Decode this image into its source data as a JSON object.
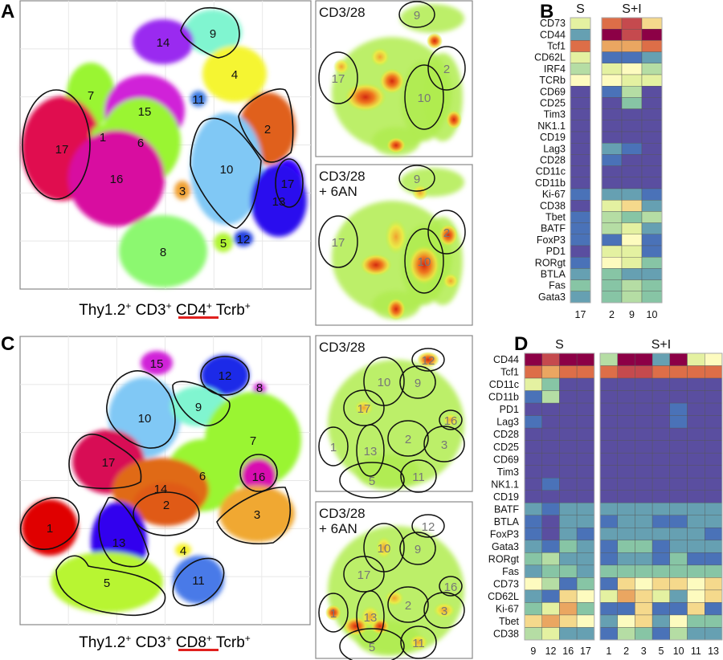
{
  "panel_letters": {
    "a": "A",
    "b": "B",
    "c": "C",
    "d": "D"
  },
  "captions": {
    "a": {
      "pre": "Thy1.2",
      "sup1": "+",
      "mid": " CD3",
      "sup2": "+",
      "hl": " CD4",
      "sup3": "+",
      "post": " Tcrb",
      "sup4": "+"
    },
    "c": {
      "pre": "Thy1.2",
      "sup1": "+",
      "mid": " CD3",
      "sup2": "+",
      "hl": " CD8",
      "sup3": "+",
      "post": " Tcrb",
      "sup4": "+"
    }
  },
  "highlight_color": "#e0201e",
  "density_titles": {
    "top": "CD3/28",
    "bottom_line1": "CD3/28",
    "bottom_line2": "+ 6AN"
  },
  "tsne_a": {
    "clusters": [
      {
        "label": "9",
        "color": "#80f5d0"
      },
      {
        "label": "14",
        "color": "#9a2af0"
      },
      {
        "label": "4",
        "color": "#f5f530"
      },
      {
        "label": "7",
        "color": "#9af530"
      },
      {
        "label": "15",
        "color": "#d020d8"
      },
      {
        "label": "11",
        "color": "#3a78e0"
      },
      {
        "label": "17",
        "color": "#e0084f"
      },
      {
        "label": "1",
        "color": "#9af530"
      },
      {
        "label": "6",
        "color": "#9af530"
      },
      {
        "label": "2",
        "color": "#e0601a"
      },
      {
        "label": "10",
        "color": "#80c8f5"
      },
      {
        "label": "16",
        "color": "#d80aa0"
      },
      {
        "label": "3",
        "color": "#f0a030"
      },
      {
        "label": "17",
        "color": "#3300ff"
      },
      {
        "label": "13",
        "color": "#2b10ee"
      },
      {
        "label": "8",
        "color": "#8cf870"
      },
      {
        "label": "5",
        "color": "#b0f530"
      },
      {
        "label": "12",
        "color": "#2040e0"
      }
    ],
    "density_gates": [
      "9",
      "17",
      "2",
      "10"
    ]
  },
  "tsne_c": {
    "clusters": [
      {
        "label": "15",
        "color": "#d020d8"
      },
      {
        "label": "12",
        "color": "#1a2ae8"
      },
      {
        "label": "8",
        "color": "#d020d8"
      },
      {
        "label": "10",
        "color": "#80c8f5"
      },
      {
        "label": "9",
        "color": "#80f5d0"
      },
      {
        "label": "7",
        "color": "#9af530"
      },
      {
        "label": "17",
        "color": "#d80a55"
      },
      {
        "label": "6",
        "color": "#9af530"
      },
      {
        "label": "16",
        "color": "#d80ab0"
      },
      {
        "label": "14",
        "color": "#e06a18"
      },
      {
        "label": "2",
        "color": "#e05a18"
      },
      {
        "label": "3",
        "color": "#f0a830"
      },
      {
        "label": "1",
        "color": "#e00000"
      },
      {
        "label": "13",
        "color": "#3300ee"
      },
      {
        "label": "4",
        "color": "#f5f020"
      },
      {
        "label": "5",
        "color": "#b8f530"
      },
      {
        "label": "11",
        "color": "#4a7ae8"
      }
    ],
    "density_gates": [
      "12",
      "10",
      "9",
      "17",
      "16",
      "1",
      "13",
      "2",
      "3",
      "5",
      "11"
    ]
  },
  "chart_data": [
    {
      "type": "heatmap",
      "panel": "B",
      "groups": [
        {
          "name": "S",
          "columns": [
            "17"
          ]
        },
        {
          "name": "S+I",
          "columns": [
            "2",
            "9",
            "10"
          ]
        }
      ],
      "rows": [
        "CD73",
        "CD44",
        "Tcf1",
        "CD62L",
        "IRF4",
        "TCRb",
        "CD69",
        "CD25",
        "Tim3",
        "NK1.1",
        "CD19",
        "Lag3",
        "CD28",
        "CD11c",
        "CD11b",
        "Ki-67",
        "CD38",
        "Tbet",
        "BATF",
        "FoxP3",
        "PD1",
        "RORgt",
        "BTLA",
        "Fas",
        "Gata3"
      ],
      "values": [
        [
          5,
          9,
          10,
          7
        ],
        [
          2,
          11,
          10,
          11
        ],
        [
          9,
          8,
          8,
          9
        ],
        [
          5,
          1,
          1,
          2
        ],
        [
          4,
          5,
          6,
          4
        ],
        [
          6,
          6,
          5,
          5
        ],
        [
          0,
          1,
          4,
          0
        ],
        [
          0,
          0,
          3,
          0
        ],
        [
          0,
          0,
          0,
          0
        ],
        [
          0,
          0,
          0,
          0
        ],
        [
          0,
          0,
          0,
          0
        ],
        [
          0,
          2,
          1,
          0
        ],
        [
          0,
          1,
          0,
          0
        ],
        [
          0,
          0,
          0,
          0
        ],
        [
          0,
          0,
          0,
          0
        ],
        [
          1,
          2,
          2,
          1
        ],
        [
          0,
          5,
          7,
          2
        ],
        [
          1,
          4,
          3,
          4
        ],
        [
          1,
          4,
          5,
          2
        ],
        [
          1,
          1,
          6,
          1
        ],
        [
          0,
          5,
          5,
          1
        ],
        [
          1,
          6,
          5,
          3
        ],
        [
          2,
          3,
          2,
          2
        ],
        [
          3,
          3,
          4,
          3
        ],
        [
          2,
          3,
          4,
          3
        ]
      ]
    },
    {
      "type": "heatmap",
      "panel": "D",
      "groups": [
        {
          "name": "S",
          "columns": [
            "9",
            "12",
            "16",
            "17"
          ]
        },
        {
          "name": "S+I",
          "columns": [
            "1",
            "2",
            "3",
            "5",
            "10",
            "11",
            "13"
          ]
        }
      ],
      "rows": [
        "CD44",
        "Tcf1",
        "CD11c",
        "CD11b",
        "PD1",
        "Lag3",
        "CD28",
        "CD25",
        "CD69",
        "Tim3",
        "NK1.1",
        "CD19",
        "BATF",
        "BTLA",
        "FoxP3",
        "Gata3",
        "RORgt",
        "Fas",
        "CD73",
        "CD62L",
        "Ki-67",
        "Tbet",
        "CD38"
      ],
      "values": [
        [
          11,
          10,
          11,
          11,
          4,
          11,
          11,
          2,
          11,
          5,
          6
        ],
        [
          9,
          8,
          9,
          9,
          9,
          10,
          10,
          9,
          9,
          9,
          9
        ],
        [
          5,
          3,
          0,
          0,
          0,
          0,
          0,
          0,
          0,
          0,
          0
        ],
        [
          1,
          4,
          0,
          0,
          0,
          0,
          0,
          0,
          0,
          0,
          0
        ],
        [
          0,
          0,
          0,
          0,
          0,
          0,
          0,
          0,
          1,
          0,
          0
        ],
        [
          1,
          0,
          0,
          0,
          0,
          0,
          0,
          0,
          1,
          0,
          0
        ],
        [
          0,
          0,
          0,
          0,
          0,
          0,
          0,
          0,
          0,
          0,
          0
        ],
        [
          0,
          0,
          0,
          0,
          0,
          0,
          0,
          0,
          0,
          0,
          0
        ],
        [
          0,
          0,
          0,
          0,
          0,
          0,
          0,
          0,
          0,
          0,
          0
        ],
        [
          0,
          0,
          0,
          0,
          0,
          0,
          0,
          0,
          0,
          0,
          0
        ],
        [
          0,
          1,
          0,
          0,
          0,
          0,
          0,
          0,
          0,
          0,
          0
        ],
        [
          0,
          0,
          0,
          0,
          0,
          0,
          0,
          0,
          0,
          0,
          0
        ],
        [
          2,
          1,
          2,
          2,
          2,
          2,
          2,
          2,
          2,
          2,
          2
        ],
        [
          1,
          0,
          2,
          2,
          1,
          2,
          2,
          1,
          1,
          2,
          2
        ],
        [
          1,
          0,
          2,
          1,
          2,
          2,
          2,
          2,
          2,
          2,
          1
        ],
        [
          2,
          1,
          3,
          2,
          1,
          3,
          3,
          1,
          2,
          2,
          2
        ],
        [
          3,
          4,
          2,
          2,
          1,
          2,
          2,
          1,
          3,
          1,
          1
        ],
        [
          2,
          3,
          3,
          2,
          3,
          3,
          3,
          3,
          3,
          3,
          3
        ],
        [
          6,
          4,
          1,
          3,
          1,
          7,
          6,
          7,
          7,
          6,
          7
        ],
        [
          2,
          1,
          7,
          6,
          5,
          8,
          7,
          5,
          2,
          6,
          7
        ],
        [
          3,
          5,
          8,
          3,
          1,
          1,
          7,
          1,
          1,
          7,
          1
        ],
        [
          7,
          8,
          7,
          6,
          2,
          6,
          7,
          2,
          6,
          3,
          3
        ],
        [
          4,
          5,
          2,
          2,
          1,
          4,
          3,
          1,
          4,
          2,
          2
        ]
      ]
    }
  ],
  "color_scale": [
    "#5a4ea0",
    "#4a72b8",
    "#66a0b2",
    "#87c5a5",
    "#b5dda4",
    "#e4f1a1",
    "#fdfbbf",
    "#f5d98c",
    "#eaa661",
    "#dd6e48",
    "#c54a4e",
    "#8c0046"
  ]
}
